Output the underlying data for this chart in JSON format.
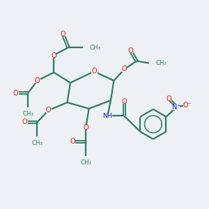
{
  "background_color": "#edf1f3",
  "bond_color": "#2d7a5f",
  "oxygen_color": "#ee1111",
  "nitrogen_color": "#1111cc",
  "bond_width": 1.6,
  "figsize": [
    3.0,
    3.0
  ],
  "dpi": 100,
  "xlim": [
    0,
    10
  ],
  "ylim": [
    0,
    10
  ]
}
